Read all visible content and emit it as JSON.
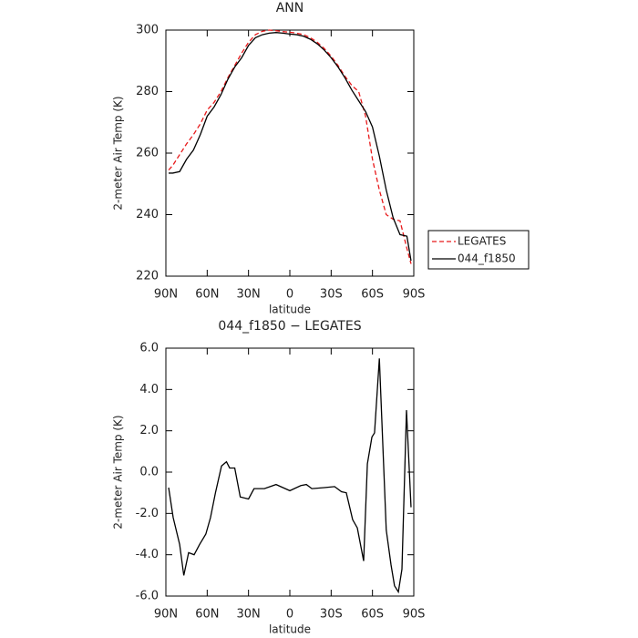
{
  "chart_data": [
    {
      "type": "line",
      "title": "ANN",
      "xlabel": "latitude",
      "ylabel": "2-meter Air Temp (K)",
      "x": [
        88,
        85,
        80,
        75,
        70,
        65,
        60,
        55,
        50,
        45,
        40,
        35,
        30,
        25,
        20,
        15,
        10,
        5,
        0,
        -5,
        -10,
        -15,
        -20,
        -25,
        -30,
        -35,
        -40,
        -45,
        -50,
        -55,
        -60,
        -65,
        -70,
        -75,
        -80,
        -85,
        -88
      ],
      "series": [
        {
          "name": "LEGATES",
          "color": "#e8191a",
          "dash": true,
          "values": [
            254.5,
            256,
            259.5,
            263,
            266,
            269.5,
            274,
            276.5,
            280,
            284.5,
            288.5,
            292.5,
            296,
            298.5,
            299.6,
            300,
            299.8,
            299.5,
            299.3,
            299,
            298.5,
            297.5,
            296,
            294,
            291.5,
            288.5,
            285,
            282,
            280,
            272,
            258,
            248,
            240,
            238.5,
            238,
            229,
            224
          ]
        },
        {
          "name": "044_f1850",
          "color": "#000000",
          "dash": false,
          "values": [
            253.5,
            253.5,
            254,
            258,
            261,
            266,
            272,
            275,
            279,
            284,
            288,
            291,
            295,
            297.5,
            298.5,
            299,
            299.2,
            299,
            298.7,
            298.5,
            298,
            297,
            295.5,
            293.5,
            291,
            288,
            284.5,
            280.5,
            277,
            273.5,
            268.5,
            259,
            248,
            239,
            233.5,
            233,
            225
          ]
        }
      ],
      "xlim": [
        90,
        -90
      ],
      "xticks": [
        {
          "value": 90,
          "label": "90N"
        },
        {
          "value": 60,
          "label": "60N"
        },
        {
          "value": 30,
          "label": "30N"
        },
        0,
        {
          "value": -30,
          "label": "30S"
        },
        {
          "value": -60,
          "label": "60S"
        },
        {
          "value": -90,
          "label": "90S"
        }
      ],
      "ylim": [
        220,
        300
      ],
      "yticks": [
        220,
        240,
        260,
        280,
        300
      ],
      "legend": "outside-right"
    },
    {
      "type": "line",
      "title": "044_f1850 − LEGATES",
      "xlabel": "latitude",
      "ylabel": "2-meter Air Temp (K)",
      "x": [
        88,
        84.7,
        80,
        77,
        73.5,
        69.5,
        65.5,
        61,
        57.6,
        54,
        49.6,
        46,
        43.7,
        40,
        36,
        30,
        26,
        18.5,
        10,
        0,
        -8,
        -12,
        -16,
        -25,
        -32.5,
        -37.5,
        -41,
        -45.6,
        -49,
        -53.6,
        -56.3,
        -59.6,
        -61.5,
        -65,
        -70,
        -73.5,
        -76,
        -78.8,
        -81.4,
        -84.7,
        -88
      ],
      "series": [
        {
          "color": "#000000",
          "dash": false,
          "values": [
            -0.75,
            -2.2,
            -3.5,
            -5.0,
            -3.9,
            -4.0,
            -3.5,
            -3.0,
            -2.2,
            -1.0,
            0.3,
            0.5,
            0.2,
            0.2,
            -1.2,
            -1.3,
            -0.8,
            -0.8,
            -0.6,
            -0.9,
            -0.65,
            -0.6,
            -0.8,
            -0.75,
            -0.7,
            -0.95,
            -1.0,
            -2.3,
            -2.7,
            -4.3,
            0.4,
            1.7,
            1.9,
            5.5,
            -2.8,
            -4.5,
            -5.5,
            -5.8,
            -4.7,
            3.0,
            -1.7
          ]
        }
      ],
      "xlim": [
        90,
        -90
      ],
      "xticks": [
        {
          "value": 90,
          "label": "90N"
        },
        {
          "value": 60,
          "label": "60N"
        },
        {
          "value": 30,
          "label": "30N"
        },
        0,
        {
          "value": -30,
          "label": "30S"
        },
        {
          "value": -60,
          "label": "60S"
        },
        {
          "value": -90,
          "label": "90S"
        }
      ],
      "ylim": [
        -6,
        6
      ],
      "yticks": [
        {
          "value": -6,
          "label": "-6.0"
        },
        {
          "value": -4,
          "label": "-4.0"
        },
        {
          "value": -2,
          "label": "-2.0"
        },
        {
          "value": 0,
          "label": "0.0"
        },
        {
          "value": 2,
          "label": "2.0"
        },
        {
          "value": 4,
          "label": "4.0"
        },
        {
          "value": 6,
          "label": "6.0"
        }
      ]
    }
  ]
}
